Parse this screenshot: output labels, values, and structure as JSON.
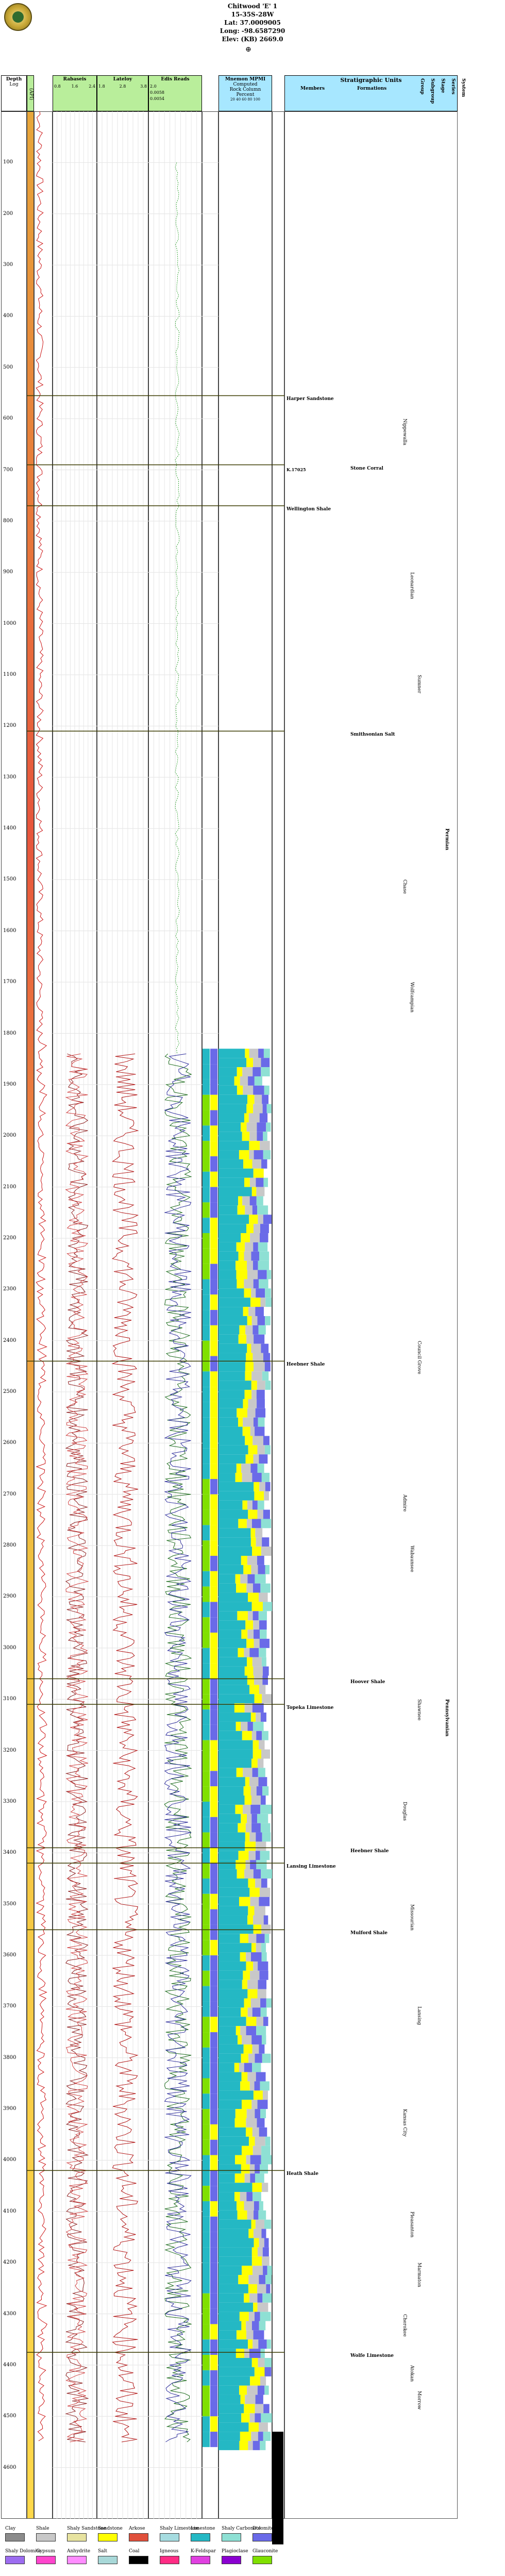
{
  "header": {
    "well_name": "Chitwood 'E' 1",
    "location": "15-35S-28W",
    "latitude": "Lat: 37.0009005",
    "longitude": "Long: -98.6587290",
    "elevation": "Elev: (KB) 2669.0"
  },
  "columns": {
    "depth": {
      "title": "Depth",
      "unit": "Log"
    },
    "gamma": {
      "title": "Gamma Ray (API)"
    },
    "track1": {
      "title": "Rabaseis",
      "scale_a": "0.8",
      "scale_b": "1.6",
      "scale_c": "2.4"
    },
    "track2": {
      "title": "Lateloy",
      "scale_a": "1.8",
      "scale_b": "2.8",
      "scale_c": "3.8"
    },
    "track3": {
      "title": "Edis Reads",
      "scale_a": "2.0",
      "scale_b": "0.0058",
      "scale_c": "0.0054"
    },
    "lith": {
      "title": "Mnemon MPMI",
      "sub1": "Computed",
      "sub2": "Rock Column",
      "sub3": "Percent",
      "ticks": "20  40  60  80  100"
    },
    "strat": {
      "title": "Stratigraphic Units",
      "members": "Members",
      "formations": "Formations"
    },
    "rank_labels": [
      "Group",
      "Subgroup",
      "Stage",
      "Series",
      "System"
    ]
  },
  "depth_ticks": [
    "100",
    "200",
    "300",
    "400",
    "500",
    "600",
    "700",
    "800",
    "900",
    "1000",
    "1100",
    "1200",
    "1300",
    "1400",
    "1500",
    "1600",
    "1700",
    "1800",
    "1900",
    "2000",
    "2100",
    "2200",
    "2300",
    "2400",
    "2500",
    "2600",
    "2700",
    "2800",
    "2900",
    "3000",
    "3100",
    "3200",
    "3300",
    "3400",
    "3500",
    "3600",
    "3700",
    "3800",
    "3900",
    "4000",
    "4100",
    "4200",
    "4300",
    "4400",
    "4500",
    "4600"
  ],
  "units": [
    {
      "name": "Harper Sandstone",
      "depth": 555
    },
    {
      "name": "Stone Corral",
      "depth": 690
    },
    {
      "name": "Wellington Shale",
      "depth": 770
    },
    {
      "name": "Smithsonian Salt",
      "depth": 1210
    },
    {
      "name": "Heebner Shale",
      "depth": 2440
    },
    {
      "name": "Hoover Shale",
      "depth": 3060
    },
    {
      "name": "Topeka Limestone",
      "depth": 3110
    },
    {
      "name": "Heebner Shale",
      "depth": 3390
    },
    {
      "name": "Lansing Limestone",
      "depth": 3420
    },
    {
      "name": "Mulford Shale",
      "depth": 3550
    },
    {
      "name": "Heath Shale",
      "depth": 4020
    },
    {
      "name": "Wolfe Limestone",
      "depth": 4375
    }
  ],
  "side_labels": [
    "Nippewalla",
    "Leonardian",
    "Sumner",
    "Chase",
    "Wolfcampian",
    "Council Grove",
    "Admire",
    "Wabaunsee",
    "Shawnee",
    "Douglas",
    "Missourian",
    "Lansing",
    "Kansas City",
    "Pleasanton",
    "Marmaton",
    "Cherokee",
    "Atokan",
    "Morrow"
  ],
  "system_labels": [
    "Permian",
    "Pennsylvanian"
  ],
  "depth_marker": "K.17025",
  "legend": [
    {
      "label": "Clay",
      "color": "#8b8b8b"
    },
    {
      "label": "Shale",
      "color": "#c8c8c8"
    },
    {
      "label": "Shaly Sandstone",
      "color": "#e7e3a0"
    },
    {
      "label": "Sandstone",
      "color": "#ffff00"
    },
    {
      "label": "Arkose",
      "color": "#e0503c"
    },
    {
      "label": "Shaly Limestone",
      "color": "#a6dce0"
    },
    {
      "label": "Limestone",
      "color": "#24b8c4"
    },
    {
      "label": "Shaly Carbonate",
      "color": "#8ee0d4"
    },
    {
      "label": "Dolomite",
      "color": "#6a6ae8"
    },
    {
      "label": "Shaly Dolomite",
      "color": "#9c6cf0"
    },
    {
      "label": "Gypsum",
      "color": "#ff44cc"
    },
    {
      "label": "Anhydrite",
      "color": "#ff8cff"
    },
    {
      "label": "Salt",
      "color": "#a8d8d8"
    },
    {
      "label": "Coal",
      "color": "#000000"
    },
    {
      "label": "Igneous",
      "color": "#ff2c84"
    },
    {
      "label": "K-Feldspar",
      "color": "#e040e0"
    },
    {
      "label": "Plagioclase",
      "color": "#8a00d0"
    },
    {
      "label": "Glauconite",
      "color": "#80e000"
    }
  ],
  "colors": {
    "salt_red": "#e8553c",
    "limestone_green": "#9fc69c",
    "teal": "#5fbfa8",
    "header_green": "#b9ee9b",
    "header_cyan": "#a7e7ff"
  }
}
